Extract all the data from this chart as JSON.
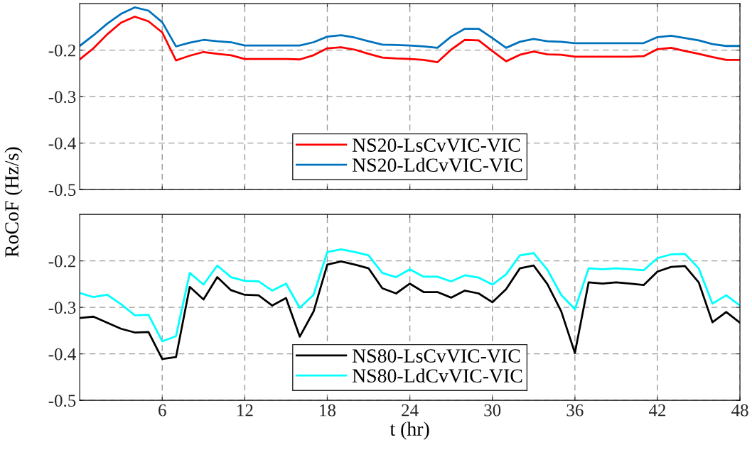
{
  "chart_data": [
    {
      "type": "line",
      "ylabel": "RoCoF (Hz/s)",
      "x": [
        0,
        1,
        2,
        3,
        4,
        5,
        6,
        7,
        8,
        9,
        10,
        11,
        12,
        13,
        14,
        15,
        16,
        17,
        18,
        19,
        20,
        21,
        22,
        23,
        24,
        25,
        26,
        27,
        28,
        29,
        30,
        31,
        32,
        33,
        34,
        35,
        36,
        37,
        38,
        39,
        40,
        41,
        42,
        43,
        44,
        45,
        46,
        47,
        48
      ],
      "xlim": [
        0,
        48
      ],
      "xticks": [
        {
          "value": 6,
          "label": null
        },
        {
          "value": 12,
          "label": null
        },
        {
          "value": 18,
          "label": null
        },
        {
          "value": 24,
          "label": null
        },
        {
          "value": 30,
          "label": null
        },
        {
          "value": 36,
          "label": null
        },
        {
          "value": 42,
          "label": null
        },
        {
          "value": 48,
          "label": null
        }
      ],
      "ylim": [
        -0.5,
        -0.1
      ],
      "yticks": [
        {
          "value": -0.5,
          "label": "-0.5"
        },
        {
          "value": -0.4,
          "label": "-0.4"
        },
        {
          "value": -0.3,
          "label": "-0.3"
        },
        {
          "value": -0.2,
          "label": "-0.2"
        }
      ],
      "tick_labels": "y",
      "grid": true,
      "legend": "bottom",
      "line_style": "solid",
      "series": [
        {
          "name": "NS20-LsCvVIC-VIC",
          "color": "#ff0000",
          "values": [
            -0.22,
            -0.196,
            -0.166,
            -0.141,
            -0.128,
            -0.138,
            -0.162,
            -0.222,
            -0.212,
            -0.204,
            -0.208,
            -0.211,
            -0.219,
            -0.219,
            -0.219,
            -0.219,
            -0.22,
            -0.211,
            -0.196,
            -0.194,
            -0.199,
            -0.208,
            -0.216,
            -0.218,
            -0.219,
            -0.221,
            -0.226,
            -0.199,
            -0.178,
            -0.179,
            -0.202,
            -0.224,
            -0.21,
            -0.203,
            -0.209,
            -0.21,
            -0.214,
            -0.214,
            -0.214,
            -0.214,
            -0.214,
            -0.213,
            -0.198,
            -0.195,
            -0.202,
            -0.208,
            -0.215,
            -0.221,
            -0.221
          ]
        },
        {
          "name": "NS20-LdCvVIC-VIC",
          "color": "#0072bd",
          "values": [
            -0.191,
            -0.168,
            -0.143,
            -0.122,
            -0.108,
            -0.115,
            -0.14,
            -0.192,
            -0.184,
            -0.178,
            -0.181,
            -0.183,
            -0.19,
            -0.19,
            -0.19,
            -0.19,
            -0.19,
            -0.183,
            -0.171,
            -0.168,
            -0.173,
            -0.181,
            -0.188,
            -0.189,
            -0.19,
            -0.192,
            -0.195,
            -0.171,
            -0.154,
            -0.154,
            -0.174,
            -0.195,
            -0.182,
            -0.176,
            -0.181,
            -0.182,
            -0.185,
            -0.185,
            -0.185,
            -0.185,
            -0.185,
            -0.185,
            -0.172,
            -0.169,
            -0.174,
            -0.179,
            -0.187,
            -0.191,
            -0.191
          ]
        }
      ]
    },
    {
      "type": "line",
      "xlabel": "t (hr)",
      "x": [
        0,
        1,
        2,
        3,
        4,
        5,
        6,
        7,
        8,
        9,
        10,
        11,
        12,
        13,
        14,
        15,
        16,
        17,
        18,
        19,
        20,
        21,
        22,
        23,
        24,
        25,
        26,
        27,
        28,
        29,
        30,
        31,
        32,
        33,
        34,
        35,
        36,
        37,
        38,
        39,
        40,
        41,
        42,
        43,
        44,
        45,
        46,
        47,
        48
      ],
      "xlim": [
        0,
        48
      ],
      "xticks": [
        6,
        12,
        18,
        24,
        30,
        36,
        42,
        48
      ],
      "ylim": [
        -0.5,
        -0.1
      ],
      "yticks": [
        {
          "value": -0.5,
          "label": "-0.5"
        },
        {
          "value": -0.4,
          "label": "-0.4"
        },
        {
          "value": -0.3,
          "label": "-0.3"
        },
        {
          "value": -0.2,
          "label": "-0.2"
        }
      ],
      "grid": true,
      "legend": "bottom",
      "line_style": "solid",
      "series": [
        {
          "name": "NS80-LsCvVIC-VIC",
          "color": "#000000",
          "values": [
            -0.323,
            -0.32,
            -0.333,
            -0.346,
            -0.354,
            -0.353,
            -0.411,
            -0.407,
            -0.256,
            -0.283,
            -0.235,
            -0.263,
            -0.273,
            -0.274,
            -0.296,
            -0.28,
            -0.363,
            -0.309,
            -0.208,
            -0.201,
            -0.208,
            -0.216,
            -0.259,
            -0.27,
            -0.249,
            -0.267,
            -0.267,
            -0.279,
            -0.264,
            -0.27,
            -0.289,
            -0.261,
            -0.216,
            -0.21,
            -0.25,
            -0.308,
            -0.398,
            -0.246,
            -0.249,
            -0.246,
            -0.249,
            -0.252,
            -0.223,
            -0.213,
            -0.211,
            -0.246,
            -0.332,
            -0.31,
            -0.333
          ]
        },
        {
          "name": "NS80-LdCvVIC-VIC",
          "color": "#00ffff",
          "values": [
            -0.269,
            -0.278,
            -0.273,
            -0.293,
            -0.317,
            -0.316,
            -0.373,
            -0.362,
            -0.226,
            -0.251,
            -0.21,
            -0.235,
            -0.243,
            -0.244,
            -0.264,
            -0.249,
            -0.301,
            -0.273,
            -0.181,
            -0.175,
            -0.181,
            -0.188,
            -0.226,
            -0.235,
            -0.218,
            -0.234,
            -0.234,
            -0.244,
            -0.231,
            -0.236,
            -0.251,
            -0.229,
            -0.188,
            -0.183,
            -0.219,
            -0.273,
            -0.304,
            -0.216,
            -0.218,
            -0.216,
            -0.218,
            -0.22,
            -0.194,
            -0.186,
            -0.185,
            -0.216,
            -0.292,
            -0.274,
            -0.296
          ]
        }
      ]
    }
  ]
}
